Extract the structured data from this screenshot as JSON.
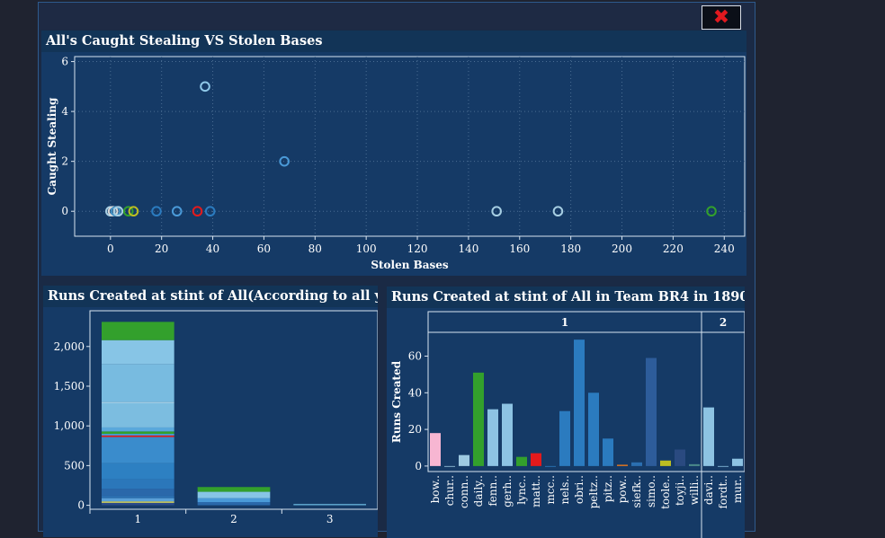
{
  "dashboard": {
    "close_icon": "close-x-icon",
    "close_glyph": "✖",
    "accent_color": "#e0191f"
  },
  "scatter": {
    "title": "All's Caught Stealing VS Stolen Bases",
    "chart_data": {
      "type": "scatter",
      "title": "All's Caught Stealing VS Stolen Bases",
      "xlabel": "Stolen Bases",
      "ylabel": "Caught Stealing",
      "xlim": [
        -14,
        248
      ],
      "ylim": [
        -1,
        6.2
      ],
      "xticks": [
        0,
        20,
        40,
        60,
        80,
        100,
        120,
        140,
        160,
        180,
        200,
        220,
        240
      ],
      "yticks": [
        0,
        2,
        4,
        6
      ],
      "grid": true,
      "points": [
        {
          "x": 37,
          "y": 5,
          "color": "#8fc8e8"
        },
        {
          "x": 68,
          "y": 2,
          "color": "#4a9ad8"
        },
        {
          "x": 0,
          "y": 0,
          "color": "#a6cee3"
        },
        {
          "x": 1,
          "y": 0,
          "color": "#d9d9d9"
        },
        {
          "x": 2,
          "y": 0,
          "color": "#4292c6"
        },
        {
          "x": 3,
          "y": 0,
          "color": "#a6cee3"
        },
        {
          "x": 7,
          "y": 0,
          "color": "#33a02c"
        },
        {
          "x": 9,
          "y": 0,
          "color": "#bcbd22"
        },
        {
          "x": 18,
          "y": 0,
          "color": "#2b7bbf"
        },
        {
          "x": 26,
          "y": 0,
          "color": "#4a9ad8"
        },
        {
          "x": 34,
          "y": 0,
          "color": "#e31a1c"
        },
        {
          "x": 39,
          "y": 0,
          "color": "#2b7bbf"
        },
        {
          "x": 151,
          "y": 0,
          "color": "#a6cee3"
        },
        {
          "x": 175,
          "y": 0,
          "color": "#a6cee3"
        },
        {
          "x": 235,
          "y": 0,
          "color": "#33a02c"
        }
      ]
    }
  },
  "stacked": {
    "title": "Runs Created at stint of All(According to all years)",
    "chart_data": {
      "type": "bar",
      "stacked": true,
      "title": "Runs Created at stint of All(According to all years)",
      "xlabel": "",
      "ylabel": "",
      "categories": [
        "1",
        "2",
        "3"
      ],
      "ylim": [
        -50,
        2450
      ],
      "yticks": [
        0,
        500,
        1000,
        1500,
        2000
      ],
      "ytick_labels": [
        "0",
        "500",
        "1,000",
        "1,500",
        "2,000"
      ],
      "stacks": [
        {
          "category": "1",
          "segments": [
            {
              "value": 30,
              "color": "#2a4a8a"
            },
            {
              "value": 20,
              "color": "#c8c860"
            },
            {
              "value": 40,
              "color": "#5aa0d8"
            },
            {
              "value": 30,
              "color": "#2b6fb0"
            },
            {
              "value": 90,
              "color": "#2a68aa"
            },
            {
              "value": 120,
              "color": "#2b77ba"
            },
            {
              "value": 200,
              "color": "#2d80c2"
            },
            {
              "value": 330,
              "color": "#3a8ccc"
            },
            {
              "value": 20,
              "color": "#e31a1c"
            },
            {
              "value": 20,
              "color": "#4aa0dd"
            },
            {
              "value": 30,
              "color": "#33a02c"
            },
            {
              "value": 50,
              "color": "#5aa8dc"
            },
            {
              "value": 310,
              "color": "#7cbde0"
            },
            {
              "value": 10,
              "color": "#c7e2f0"
            },
            {
              "value": 480,
              "color": "#78bbe0"
            },
            {
              "value": 300,
              "color": "#87c5e6"
            },
            {
              "value": 230,
              "color": "#33a02c"
            }
          ]
        },
        {
          "category": "2",
          "segments": [
            {
              "value": 40,
              "color": "#2a68aa"
            },
            {
              "value": 50,
              "color": "#4a9ad8"
            },
            {
              "value": 80,
              "color": "#87c5e6"
            },
            {
              "value": 60,
              "color": "#33a02c"
            }
          ]
        },
        {
          "category": "3",
          "segments": [
            {
              "value": 18,
              "color": "#5aa0c8"
            }
          ]
        }
      ]
    }
  },
  "team": {
    "title": "Runs Created at stint of All in Team BR4 in 1890",
    "chart_data": {
      "type": "bar",
      "title": "Runs Created at stint of All in Team BR4 in 1890",
      "xlabel": "",
      "ylabel": "Runs Created",
      "ylim": [
        -3,
        73
      ],
      "yticks": [
        0,
        20,
        40,
        60
      ],
      "groups": [
        {
          "label": "1",
          "bars": [
            {
              "name": "bow..",
              "value": 18,
              "color": "#f7b6d2"
            },
            {
              "name": "chur..",
              "value": 0,
              "color": "#9ecae1"
            },
            {
              "name": "conn..",
              "value": 6,
              "color": "#9ecae1"
            },
            {
              "name": "daily..",
              "value": 51,
              "color": "#33a02c"
            },
            {
              "name": "fenn..",
              "value": 31,
              "color": "#8dc3e3"
            },
            {
              "name": "gerh..",
              "value": 34,
              "color": "#8dc3e3"
            },
            {
              "name": "lync..",
              "value": 5,
              "color": "#33a02c"
            },
            {
              "name": "matt..",
              "value": 7,
              "color": "#e31a1c"
            },
            {
              "name": "mcc..",
              "value": 0,
              "color": "#2b7bbf"
            },
            {
              "name": "nels..",
              "value": 30,
              "color": "#2b7bbf"
            },
            {
              "name": "obri..",
              "value": 69,
              "color": "#2b7bbf"
            },
            {
              "name": "peltz..",
              "value": 40,
              "color": "#2b7bbf"
            },
            {
              "name": "pitz..",
              "value": 15,
              "color": "#2b7bbf"
            },
            {
              "name": "pow..",
              "value": 0.7,
              "color": "#e6781e"
            },
            {
              "name": "siefk..",
              "value": 2,
              "color": "#2b6fb0"
            },
            {
              "name": "simo..",
              "value": 59,
              "color": "#2d5c9a"
            },
            {
              "name": "toole..",
              "value": 3,
              "color": "#bcbd22"
            },
            {
              "name": "toyji..",
              "value": 9,
              "color": "#2a4a80"
            },
            {
              "name": "willi..",
              "value": 1,
              "color": "#4a8a8a"
            }
          ]
        },
        {
          "label": "2",
          "bars": [
            {
              "name": "davi..",
              "value": 32,
              "color": "#8dc3e3"
            },
            {
              "name": "fordt..",
              "value": 0,
              "color": "#8dc3e3"
            },
            {
              "name": "mur..",
              "value": 4,
              "color": "#8dc3e3"
            }
          ]
        }
      ]
    }
  }
}
